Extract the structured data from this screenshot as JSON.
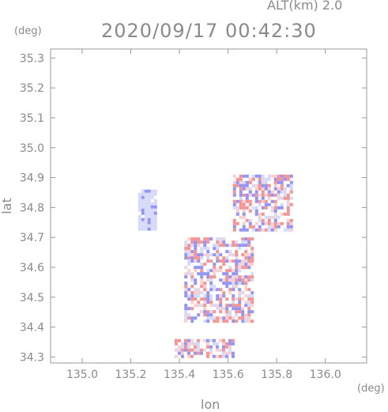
{
  "header": {
    "altitude": "ALT(km) 2.0",
    "timestamp": "2020/09/17 00:42:30"
  },
  "chart_data": {
    "type": "heatmap",
    "title": "2020/09/17 00:42:30",
    "subtitle": "ALT(km) 2.0",
    "xlabel": "lon",
    "ylabel": "lat",
    "x_unit": "(deg)",
    "y_unit": "(deg)",
    "xlim": [
      134.87,
      136.17
    ],
    "ylim": [
      34.28,
      35.33
    ],
    "x_ticks": [
      "135.0",
      "135.2",
      "135.4",
      "135.6",
      "135.8",
      "136.0"
    ],
    "y_ticks": [
      "34.3",
      "34.4",
      "34.5",
      "34.6",
      "34.7",
      "34.8",
      "34.9",
      "35.0",
      "35.1",
      "35.2",
      "35.3"
    ],
    "grid": false,
    "colors": {
      "positive": "#f07070",
      "negative": "#7070f0",
      "light_negative": "#c8cdf5",
      "axis": "#999999"
    },
    "regions": [
      {
        "kind": "negative",
        "lon": [
          135.23,
          135.3
        ],
        "lat": [
          34.73,
          34.86
        ]
      },
      {
        "kind": "mixed",
        "lon": [
          135.42,
          135.7
        ],
        "lat": [
          34.42,
          34.7
        ]
      },
      {
        "kind": "mixed",
        "lon": [
          135.62,
          135.86
        ],
        "lat": [
          34.73,
          34.91
        ]
      },
      {
        "kind": "mixed",
        "lon": [
          135.38,
          135.62
        ],
        "lat": [
          34.3,
          34.36
        ]
      }
    ]
  }
}
